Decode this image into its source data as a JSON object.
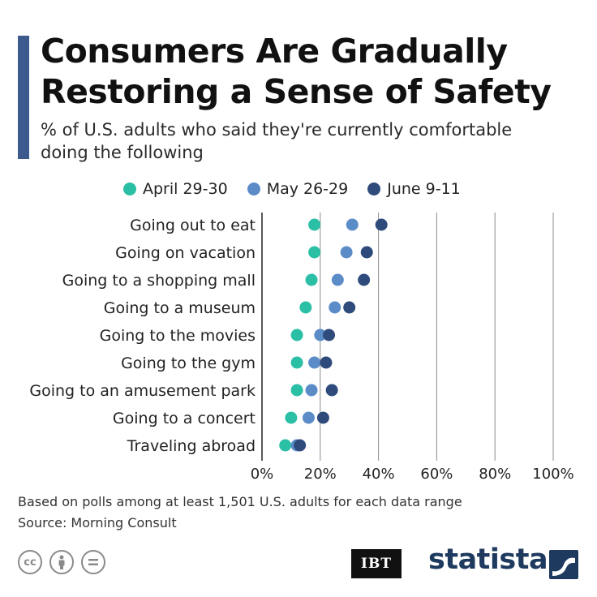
{
  "title": "Consumers Are Gradually Restoring a Sense of Safety",
  "subtitle": "% of U.S. adults who said they're currently comfortable doing the following",
  "chart_data": {
    "type": "scatter",
    "categories": [
      "Going out to eat",
      "Going on vacation",
      "Going to a shopping mall",
      "Going to a museum",
      "Going to the movies",
      "Going to the gym",
      "Going to an amusement park",
      "Going to a concert",
      "Traveling abroad"
    ],
    "series": [
      {
        "name": "April 29-30",
        "color": "#2bbfa6",
        "values": [
          18,
          18,
          17,
          15,
          12,
          12,
          12,
          10,
          8
        ]
      },
      {
        "name": "May 26-29",
        "color": "#5b8cc8",
        "values": [
          31,
          29,
          26,
          25,
          20,
          18,
          17,
          16,
          12
        ]
      },
      {
        "name": "June 9-11",
        "color": "#2f4b7c",
        "values": [
          41,
          36,
          35,
          30,
          23,
          22,
          24,
          21,
          13
        ]
      }
    ],
    "xlim": [
      0,
      100
    ],
    "xticks": [
      0,
      20,
      40,
      60,
      80,
      100
    ],
    "xtick_labels": [
      "0%",
      "20%",
      "40%",
      "60%",
      "80%",
      "100%"
    ],
    "grid": true,
    "legend_position": "top"
  },
  "footnote": "Based on polls among at least 1,501 U.S. adults for each data range",
  "source": "Source: Morning Consult",
  "logos": {
    "publisher": "IBT",
    "brand": "statista"
  }
}
